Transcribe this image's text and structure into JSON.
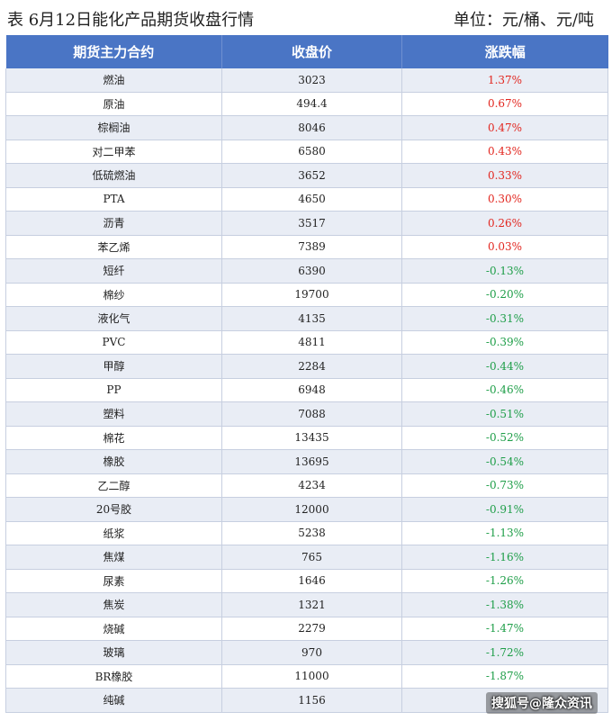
{
  "caption": {
    "title": "表  6月12日能化产品期货收盘行情",
    "unit": "单位：元/桶、元/吨"
  },
  "table": {
    "headers": [
      "期货主力合约",
      "收盘价",
      "涨跌幅"
    ],
    "rows": [
      {
        "name": "燃油",
        "price": "3023",
        "change": "1.37%",
        "dir": "up"
      },
      {
        "name": "原油",
        "price": "494.4",
        "change": "0.67%",
        "dir": "up"
      },
      {
        "name": "棕榈油",
        "price": "8046",
        "change": "0.47%",
        "dir": "up"
      },
      {
        "name": "对二甲苯",
        "price": "6580",
        "change": "0.43%",
        "dir": "up"
      },
      {
        "name": "低硫燃油",
        "price": "3652",
        "change": "0.33%",
        "dir": "up"
      },
      {
        "name": "PTA",
        "price": "4650",
        "change": "0.30%",
        "dir": "up"
      },
      {
        "name": "沥青",
        "price": "3517",
        "change": "0.26%",
        "dir": "up"
      },
      {
        "name": "苯乙烯",
        "price": "7389",
        "change": "0.03%",
        "dir": "up"
      },
      {
        "name": "短纤",
        "price": "6390",
        "change": "-0.13%",
        "dir": "down"
      },
      {
        "name": "棉纱",
        "price": "19700",
        "change": "-0.20%",
        "dir": "down"
      },
      {
        "name": "液化气",
        "price": "4135",
        "change": "-0.31%",
        "dir": "down"
      },
      {
        "name": "PVC",
        "price": "4811",
        "change": "-0.39%",
        "dir": "down"
      },
      {
        "name": "甲醇",
        "price": "2284",
        "change": "-0.44%",
        "dir": "down"
      },
      {
        "name": "PP",
        "price": "6948",
        "change": "-0.46%",
        "dir": "down"
      },
      {
        "name": "塑料",
        "price": "7088",
        "change": "-0.51%",
        "dir": "down"
      },
      {
        "name": "棉花",
        "price": "13435",
        "change": "-0.52%",
        "dir": "down"
      },
      {
        "name": "橡胶",
        "price": "13695",
        "change": "-0.54%",
        "dir": "down"
      },
      {
        "name": "乙二醇",
        "price": "4234",
        "change": "-0.73%",
        "dir": "down"
      },
      {
        "name": "20号胶",
        "price": "12000",
        "change": "-0.91%",
        "dir": "down"
      },
      {
        "name": "纸浆",
        "price": "5238",
        "change": "-1.13%",
        "dir": "down"
      },
      {
        "name": "焦煤",
        "price": "765",
        "change": "-1.16%",
        "dir": "down"
      },
      {
        "name": "尿素",
        "price": "1646",
        "change": "-1.26%",
        "dir": "down"
      },
      {
        "name": "焦炭",
        "price": "1321",
        "change": "-1.38%",
        "dir": "down"
      },
      {
        "name": "烧碱",
        "price": "2279",
        "change": "-1.47%",
        "dir": "down"
      },
      {
        "name": "玻璃",
        "price": "970",
        "change": "-1.72%",
        "dir": "down"
      },
      {
        "name": "BR橡胶",
        "price": "11000",
        "change": "-1.87%",
        "dir": "down"
      },
      {
        "name": "纯碱",
        "price": "1156",
        "change": "",
        "dir": "down"
      }
    ]
  },
  "watermark": "搜狐号@隆众资讯",
  "colors": {
    "header_bg": "#4a75c5",
    "row_alt": "#e9edf5",
    "up": "#e2261f",
    "down": "#1e9e48"
  }
}
